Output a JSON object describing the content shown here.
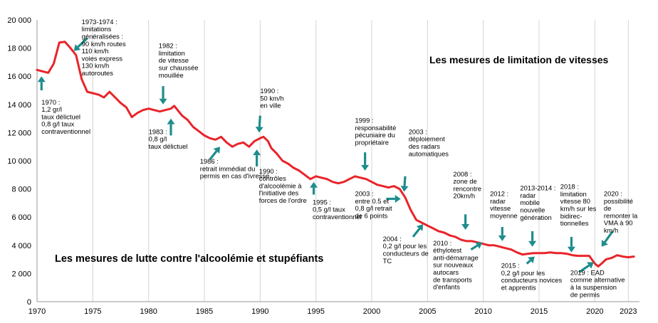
{
  "chart_data": {
    "type": "line",
    "title_speed": "Les mesures de limitation de vitesses",
    "title_alcohol": "Les mesures de lutte contre l'alcoolémie et stupéfiants",
    "xlabel": "",
    "ylabel": "",
    "xlim": [
      1970,
      2024
    ],
    "ylim": [
      0,
      20000
    ],
    "grid": "vertical",
    "line_color": "#e8242a",
    "arrow_color": "#1e8c8c",
    "x_ticks": [
      1970,
      1975,
      1980,
      1985,
      1990,
      1995,
      2000,
      2005,
      2010,
      2015,
      2020,
      2023
    ],
    "x_tick_labels": [
      "1970",
      "1975",
      "1980",
      "1985",
      "1990",
      "1995",
      "2000",
      "2005",
      "2010",
      "2015",
      "2020",
      "2023"
    ],
    "y_ticks": [
      0,
      2000,
      4000,
      6000,
      8000,
      10000,
      12000,
      14000,
      16000,
      18000,
      20000
    ],
    "y_tick_labels": [
      "0",
      "2 000",
      "4 000",
      "6 000",
      "8 000",
      "10 000",
      "12 000",
      "14 000",
      "16 000",
      "18 000",
      "20 000"
    ],
    "series": [
      {
        "points": [
          [
            1970.0,
            16450
          ],
          [
            1970.5,
            16350
          ],
          [
            1971.0,
            16250
          ],
          [
            1971.5,
            16900
          ],
          [
            1972.0,
            18400
          ],
          [
            1972.5,
            18450
          ],
          [
            1973.0,
            18000
          ],
          [
            1973.5,
            17500
          ],
          [
            1974.0,
            15800
          ],
          [
            1974.5,
            14900
          ],
          [
            1975.0,
            14800
          ],
          [
            1975.5,
            14700
          ],
          [
            1976.0,
            14500
          ],
          [
            1976.5,
            14900
          ],
          [
            1977.0,
            14500
          ],
          [
            1977.5,
            14100
          ],
          [
            1978.0,
            13800
          ],
          [
            1978.5,
            13100
          ],
          [
            1979.0,
            13400
          ],
          [
            1979.5,
            13600
          ],
          [
            1980.0,
            13700
          ],
          [
            1980.5,
            13600
          ],
          [
            1981.0,
            13500
          ],
          [
            1981.5,
            13600
          ],
          [
            1982.0,
            13700
          ],
          [
            1982.3,
            13900
          ],
          [
            1982.7,
            13500
          ],
          [
            1983.0,
            13200
          ],
          [
            1983.5,
            12900
          ],
          [
            1984.0,
            12400
          ],
          [
            1984.5,
            12100
          ],
          [
            1985.0,
            11800
          ],
          [
            1985.5,
            11600
          ],
          [
            1986.0,
            11500
          ],
          [
            1986.5,
            11700
          ],
          [
            1987.0,
            11300
          ],
          [
            1987.5,
            11000
          ],
          [
            1988.0,
            11200
          ],
          [
            1988.5,
            11300
          ],
          [
            1989.0,
            11000
          ],
          [
            1989.5,
            11400
          ],
          [
            1990.0,
            11600
          ],
          [
            1990.3,
            11700
          ],
          [
            1990.7,
            11400
          ],
          [
            1991.0,
            10900
          ],
          [
            1991.5,
            10500
          ],
          [
            1992.0,
            10000
          ],
          [
            1992.5,
            9800
          ],
          [
            1993.0,
            9500
          ],
          [
            1993.5,
            9300
          ],
          [
            1994.0,
            9000
          ],
          [
            1994.5,
            8700
          ],
          [
            1995.0,
            8900
          ],
          [
            1995.5,
            8800
          ],
          [
            1996.0,
            8700
          ],
          [
            1996.5,
            8500
          ],
          [
            1997.0,
            8400
          ],
          [
            1997.5,
            8500
          ],
          [
            1998.0,
            8700
          ],
          [
            1998.5,
            8900
          ],
          [
            1999.0,
            8800
          ],
          [
            1999.5,
            8700
          ],
          [
            2000.0,
            8500
          ],
          [
            2000.5,
            8300
          ],
          [
            2001.0,
            8200
          ],
          [
            2001.5,
            8100
          ],
          [
            2002.0,
            8200
          ],
          [
            2002.5,
            8000
          ],
          [
            2003.0,
            7400
          ],
          [
            2003.5,
            6500
          ],
          [
            2004.0,
            5800
          ],
          [
            2004.5,
            5600
          ],
          [
            2005.0,
            5400
          ],
          [
            2005.5,
            5200
          ],
          [
            2006.0,
            5000
          ],
          [
            2006.5,
            4900
          ],
          [
            2007.0,
            4700
          ],
          [
            2007.5,
            4600
          ],
          [
            2008.0,
            4400
          ],
          [
            2008.5,
            4300
          ],
          [
            2009.0,
            4300
          ],
          [
            2009.5,
            4200
          ],
          [
            2010.0,
            4100
          ],
          [
            2010.5,
            4000
          ],
          [
            2011.0,
            4000
          ],
          [
            2011.5,
            3900
          ],
          [
            2012.0,
            3800
          ],
          [
            2012.5,
            3700
          ],
          [
            2013.0,
            3500
          ],
          [
            2013.5,
            3350
          ],
          [
            2014.0,
            3400
          ],
          [
            2014.5,
            3450
          ],
          [
            2015.0,
            3450
          ],
          [
            2015.5,
            3450
          ],
          [
            2016.0,
            3500
          ],
          [
            2016.5,
            3450
          ],
          [
            2017.0,
            3450
          ],
          [
            2017.5,
            3400
          ],
          [
            2018.0,
            3300
          ],
          [
            2018.5,
            3250
          ],
          [
            2019.0,
            3250
          ],
          [
            2019.5,
            3250
          ],
          [
            2020.0,
            2700
          ],
          [
            2020.3,
            2500
          ],
          [
            2020.6,
            2700
          ],
          [
            2021.0,
            3000
          ],
          [
            2021.5,
            3100
          ],
          [
            2022.0,
            3300
          ],
          [
            2022.5,
            3200
          ],
          [
            2023.0,
            3150
          ],
          [
            2023.5,
            3200
          ]
        ]
      }
    ],
    "annotations": [
      {
        "lines": [
          "1970 :",
          "1,2 gr/l",
          "taux délictuel",
          "0,8 g/l  taux",
          "contraventionnel"
        ],
        "x": 1970.4,
        "y": 14000,
        "arrow_from": [
          1970.4,
          15000
        ],
        "arrow_to": [
          1970.4,
          16000
        ]
      },
      {
        "lines": [
          "1973-1974 :",
          "limitations",
          "généralisées :",
          "90 km/h routes",
          "110 km/h",
          "voies express",
          "130 km/h",
          "autoroutes"
        ],
        "x": 1974.0,
        "y": 19700,
        "arrow_from": [
          1974.5,
          18700
        ],
        "arrow_to": [
          1973.3,
          17800
        ]
      },
      {
        "lines": [
          "1982 :",
          "limitation",
          "de vitesse",
          "sur chaussée",
          "mouillée"
        ],
        "x": 1980.9,
        "y": 18000,
        "arrow_from": [
          1981.3,
          15300
        ],
        "arrow_to": [
          1981.3,
          14000
        ]
      },
      {
        "lines": [
          "1983 :",
          "0,8 g/l",
          "taux délictuel"
        ],
        "x": 1980.0,
        "y": 11900,
        "arrow_from": [
          1982.0,
          11800
        ],
        "arrow_to": [
          1982.0,
          13000
        ]
      },
      {
        "lines": [
          "1986 :",
          "retrait immédiat du",
          "permis en cas d'ivresse"
        ],
        "x": 1984.6,
        "y": 9800,
        "arrow_from": [
          1985.5,
          10100
        ],
        "arrow_to": [
          1986.4,
          11000
        ]
      },
      {
        "lines": [
          "1990 :",
          "50 km/h",
          "en ville"
        ],
        "x": 1990.0,
        "y": 14800,
        "arrow_from": [
          1990.0,
          13200
        ],
        "arrow_to": [
          1989.9,
          12000
        ]
      },
      {
        "lines": [
          "1990 :",
          "contrôles",
          "d'alcoolémie à",
          "l'initiative des",
          "forces de l'ordre"
        ],
        "x": 1989.9,
        "y": 9100,
        "arrow_from": [
          1989.7,
          9600
        ],
        "arrow_to": [
          1989.7,
          10800
        ]
      },
      {
        "lines": [
          "1995 :",
          "0,5 g/l  taux",
          "contraventionnel"
        ],
        "x": 1994.7,
        "y": 6900,
        "arrow_from": [
          1994.8,
          7600
        ],
        "arrow_to": [
          1994.8,
          8500
        ]
      },
      {
        "lines": [
          "1999 :",
          "responsabilité",
          "pécuniaire du",
          "propriétaire"
        ],
        "x": 1998.5,
        "y": 12700,
        "arrow_from": [
          1999.4,
          10600
        ],
        "arrow_to": [
          1999.4,
          9300
        ]
      },
      {
        "lines": [
          "2003 :",
          "entre 0.5 et",
          "0,8 g/l  retrait",
          "de 6 points"
        ],
        "x": 1998.5,
        "y": 7500,
        "arrow_from": [
          2001.3,
          7300
        ],
        "arrow_to": [
          2002.6,
          7300
        ]
      },
      {
        "lines": [
          "2003 :",
          "déploiement",
          "des  radars",
          "automatiques"
        ],
        "x": 2003.3,
        "y": 11900,
        "arrow_from": [
          2003.0,
          8900
        ],
        "arrow_to": [
          2002.9,
          7800
        ]
      },
      {
        "lines": [
          "2004 :",
          "0,2 g/l   pour les",
          "conducteurs de",
          "TC"
        ],
        "x": 2001.0,
        "y": 4300,
        "arrow_from": [
          2003.7,
          4600
        ],
        "arrow_to": [
          2004.6,
          5500
        ]
      },
      {
        "lines": [
          "2008 :",
          "zone de",
          "rencontre",
          "20km/h"
        ],
        "x": 2007.3,
        "y": 8900,
        "arrow_from": [
          2008.4,
          6200
        ],
        "arrow_to": [
          2008.4,
          5100
        ]
      },
      {
        "lines": [
          "2010 :",
          "éthylotest",
          "anti-démarrage",
          "sur nouveaux",
          "autocars",
          "de transports",
          "d'enfants"
        ],
        "x": 2005.5,
        "y": 4000,
        "arrow_from": [
          2008.9,
          3700
        ],
        "arrow_to": [
          2009.9,
          4200
        ]
      },
      {
        "lines": [
          "2012 :",
          "radar",
          "vitesse",
          "moyenne"
        ],
        "x": 2010.6,
        "y": 7500,
        "arrow_from": [
          2011.7,
          5300
        ],
        "arrow_to": [
          2011.7,
          4300
        ]
      },
      {
        "lines": [
          "2013-2014 :",
          "radar",
          "mobile",
          "nouvelle",
          "génération"
        ],
        "x": 2013.3,
        "y": 7900,
        "arrow_from": [
          2014.4,
          5000
        ],
        "arrow_to": [
          2014.4,
          3900
        ]
      },
      {
        "lines": [
          "2015 :",
          "0,2 g/l pour les",
          "conducteurs novices",
          "et apprentis"
        ],
        "x": 2011.6,
        "y": 2400,
        "arrow_from": [
          2013.9,
          2700
        ],
        "arrow_to": [
          2014.6,
          3200
        ]
      },
      {
        "lines": [
          "2018 :",
          "limitation",
          "vitesse 80",
          "km/h sur les",
          "bidirec-",
          "tionnelles"
        ],
        "x": 2016.9,
        "y": 8000,
        "arrow_from": [
          2017.9,
          4600
        ],
        "arrow_to": [
          2017.9,
          3500
        ]
      },
      {
        "lines": [
          "2020 :",
          "possibilité",
          "de",
          "remonter la",
          "VMA à 90",
          "km/h"
        ],
        "x": 2020.8,
        "y": 7500,
        "arrow_from": [
          2021.6,
          5000
        ],
        "arrow_to": [
          2020.6,
          3900
        ]
      },
      {
        "lines": [
          "2019 : EAD",
          "comme alternative",
          "à la suspension",
          "de permis"
        ],
        "x": 2017.8,
        "y": 1900,
        "arrow_from": [
          2018.6,
          2100
        ],
        "arrow_to": [
          2019.9,
          2800
        ]
      }
    ]
  }
}
